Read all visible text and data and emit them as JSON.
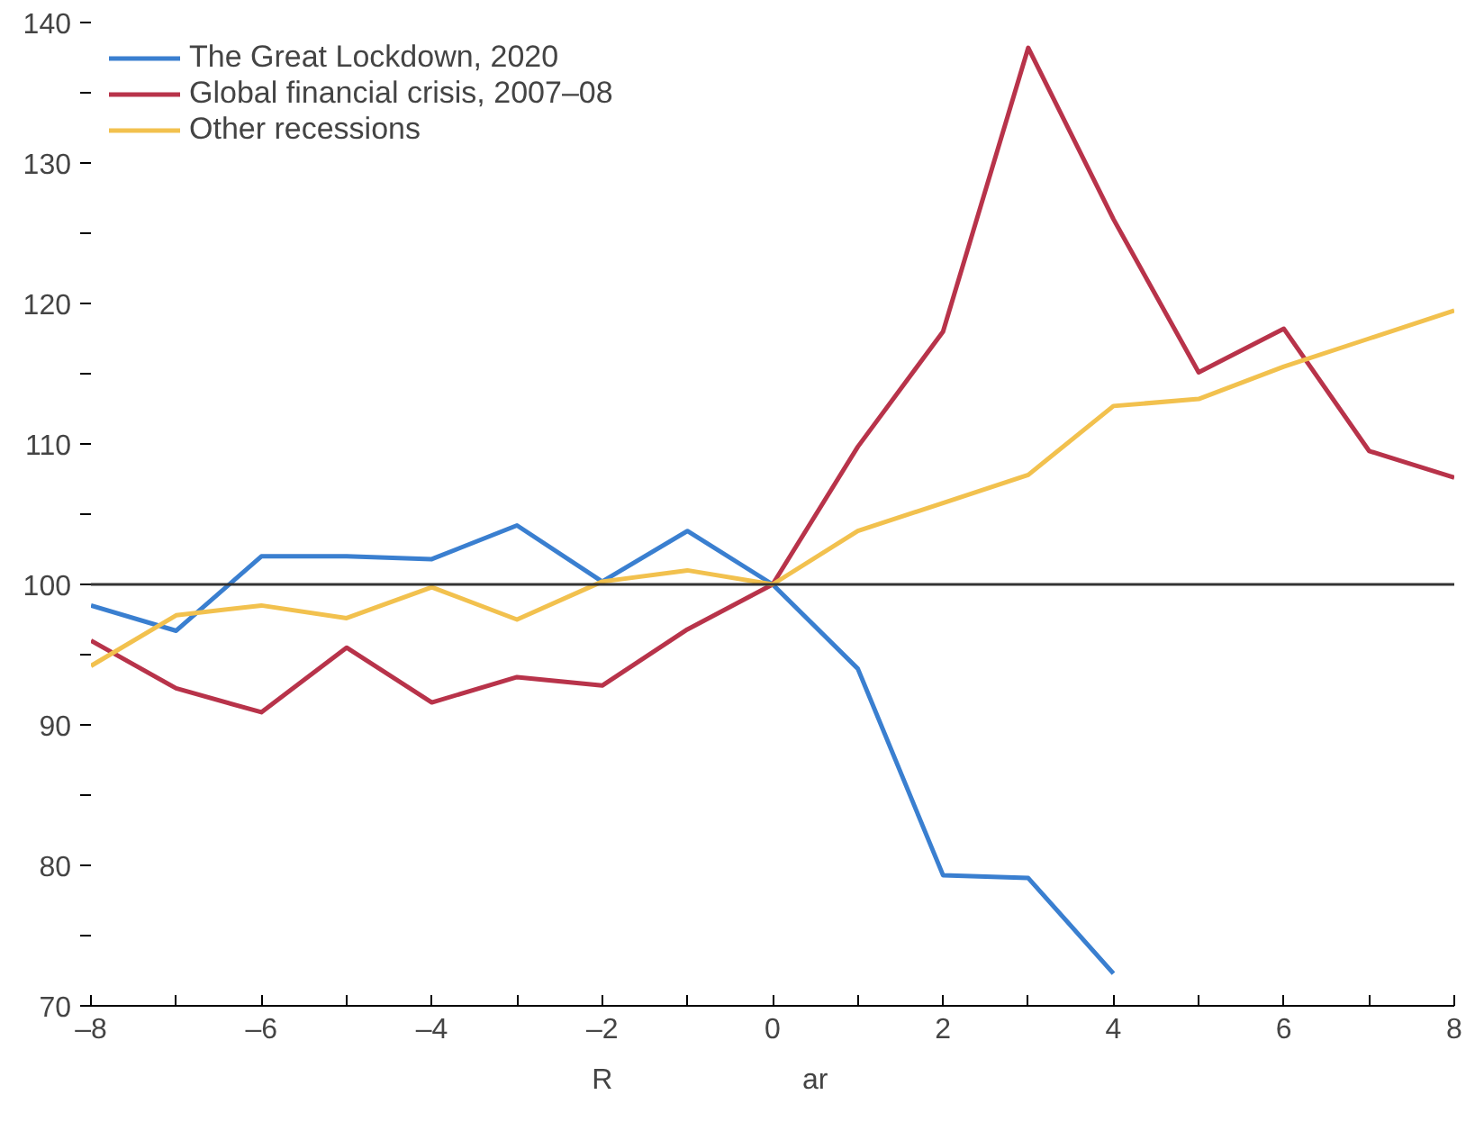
{
  "chart_data": {
    "type": "line",
    "x": [
      -8,
      -7,
      -6,
      -5,
      -4,
      -3,
      -2,
      -1,
      0,
      1,
      2,
      3,
      4,
      5,
      6,
      7,
      8
    ],
    "series": [
      {
        "name": "The Great Lockdown, 2020",
        "color": "#3a7fd0",
        "values": [
          98.5,
          96.7,
          102,
          102,
          101.8,
          104.2,
          100.2,
          103.8,
          100,
          94,
          79.3,
          79.1,
          72.3,
          null,
          null,
          null,
          null
        ]
      },
      {
        "name": "Global financial crisis, 2007–08",
        "color": "#b8334a",
        "values": [
          96,
          92.6,
          90.9,
          95.5,
          91.6,
          93.4,
          92.8,
          96.8,
          100,
          109.8,
          118,
          138.2,
          126,
          115.1,
          118.2,
          109.5,
          107.6
        ]
      },
      {
        "name": "Other recessions",
        "color": "#f2c14e",
        "values": [
          94.2,
          97.8,
          98.5,
          97.6,
          99.8,
          97.5,
          100.2,
          101,
          100,
          103.8,
          105.8,
          107.8,
          112.7,
          113.2,
          115.5,
          117.5,
          119.5
        ]
      }
    ],
    "xlim": [
      -8,
      8
    ],
    "xticks": [
      {
        "value": -8,
        "label": "–8"
      },
      {
        "value": -7,
        "label": null
      },
      {
        "value": -6,
        "label": "–6"
      },
      {
        "value": -5,
        "label": null
      },
      {
        "value": -4,
        "label": "–4"
      },
      {
        "value": -3,
        "label": null
      },
      {
        "value": -2,
        "label": "–2"
      },
      {
        "value": -1,
        "label": null
      },
      0,
      {
        "value": 1,
        "label": null
      },
      2,
      {
        "value": 3,
        "label": null
      },
      4,
      {
        "value": 5,
        "label": null
      },
      6,
      {
        "value": 7,
        "label": null
      },
      8
    ],
    "ylim": [
      70,
      140
    ],
    "yticks": [
      70,
      {
        "value": 75,
        "label": null
      },
      80,
      {
        "value": 85,
        "label": null
      },
      90,
      {
        "value": 95,
        "label": null
      },
      100,
      {
        "value": 105,
        "label": null
      },
      110,
      {
        "value": 115,
        "label": null
      },
      120,
      {
        "value": 125,
        "label": null
      },
      130,
      {
        "value": 135,
        "label": null
      },
      140
    ],
    "ref_lines": [
      {
        "axis": "y",
        "value": 100,
        "color": "#333333"
      }
    ],
    "annotations": [
      "R",
      "ar"
    ],
    "grid": false,
    "legend": "top left",
    "line_style": "solid"
  }
}
